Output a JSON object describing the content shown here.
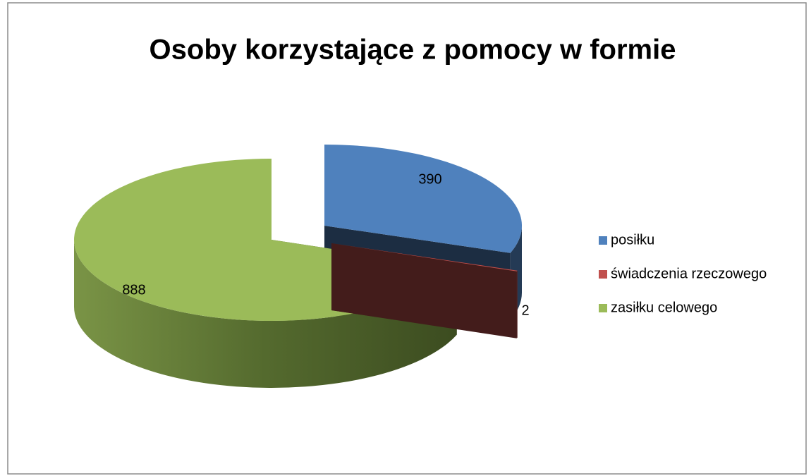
{
  "chart_data": {
    "type": "pie",
    "title": "Osoby korzystające z pomocy w formie",
    "categories": [
      "posiłku",
      "świadczenia rzeczowego",
      "zasiłku celowego"
    ],
    "values": [
      390,
      2,
      888
    ],
    "colors": [
      "#4f81bd",
      "#c0504d",
      "#9bbb59"
    ],
    "legend": "right"
  }
}
